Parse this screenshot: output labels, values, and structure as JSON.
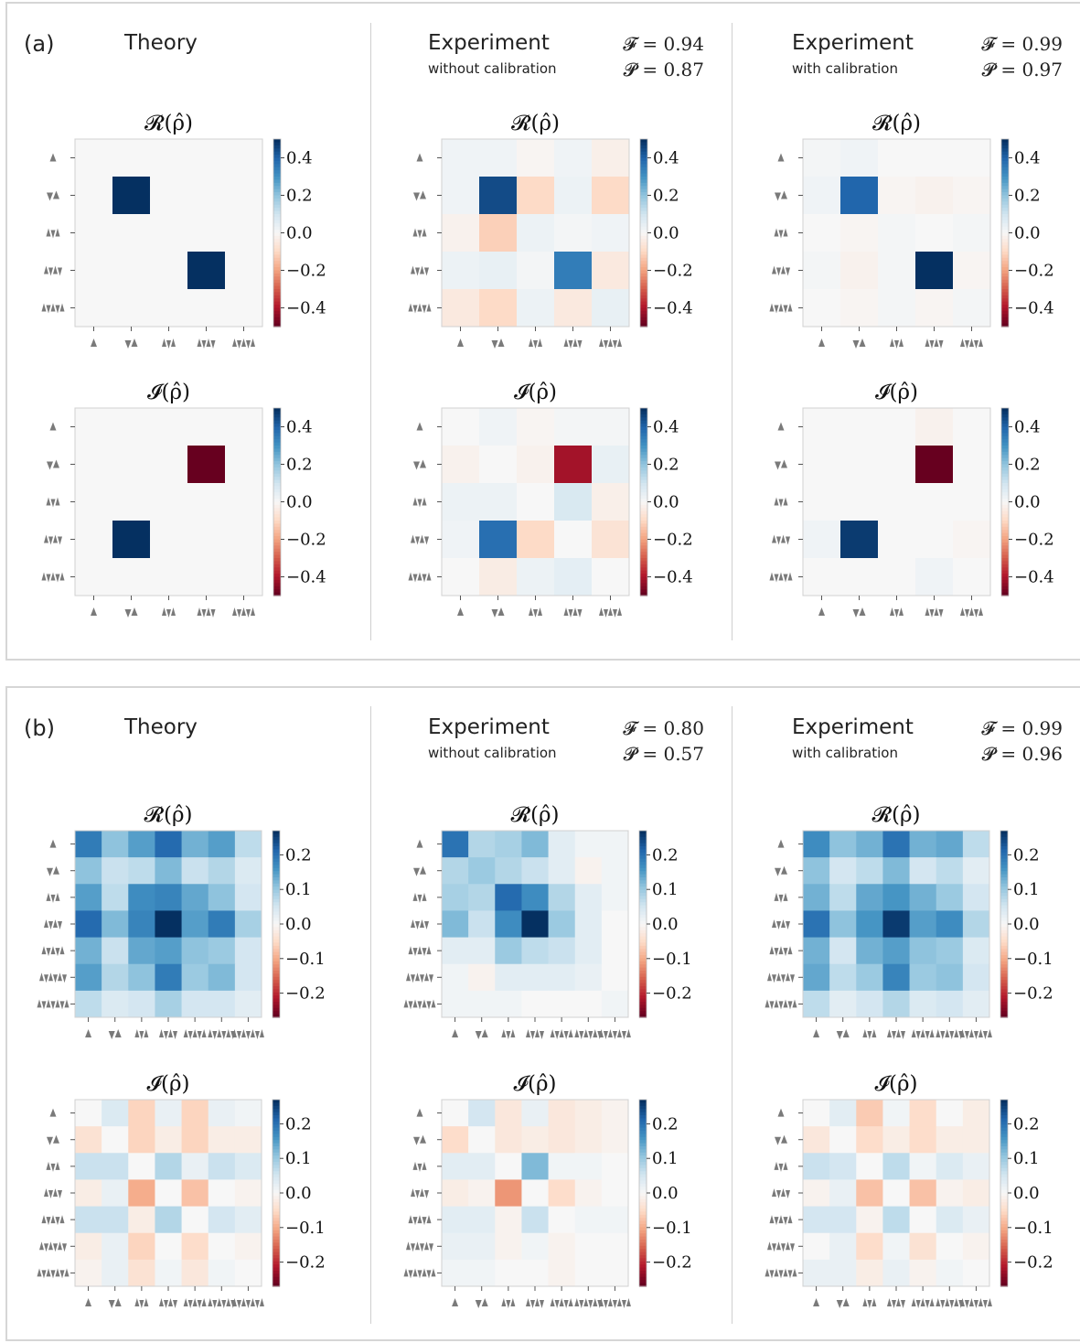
{
  "panels": [
    {
      "label": "(a)",
      "columns": [
        {
          "title": "Theory",
          "subtitle": "",
          "F": "",
          "P": ""
        },
        {
          "title": "Experiment",
          "subtitle": "without calibration",
          "F": "0.94",
          "P": "0.87"
        },
        {
          "title": "Experiment",
          "subtitle": "with calibration",
          "F": "0.99",
          "P": "0.97"
        }
      ]
    },
    {
      "label": "(b)",
      "columns": [
        {
          "title": "Theory",
          "subtitle": "",
          "F": "",
          "P": ""
        },
        {
          "title": "Experiment",
          "subtitle": "without calibration",
          "F": "0.80",
          "P": "0.57"
        },
        {
          "title": "Experiment",
          "subtitle": "with calibration",
          "F": "0.99",
          "P": "0.96"
        }
      ]
    }
  ],
  "metric_labels": {
    "F": "𝓕 =",
    "P": "𝓟 ="
  },
  "colors": {
    "positive": "#053061",
    "negative": "#67001f",
    "neutral": "#f7f7f7",
    "frame": "#d6d6d6"
  },
  "chart_data": [
    {
      "type": "heatmap",
      "panel": "a",
      "column": "Theory",
      "title": "𝓡(ρ̂)",
      "colorbar_ticks": [
        "0.4",
        "0.2",
        "0.0",
        "−0.2",
        "−0.4"
      ],
      "vmin": -0.5,
      "vmax": 0.5,
      "values": [
        [
          0,
          0,
          0,
          0,
          0
        ],
        [
          0,
          0.5,
          0,
          0,
          0
        ],
        [
          0,
          0,
          0,
          0,
          0
        ],
        [
          0,
          0,
          0,
          0.5,
          0
        ],
        [
          0,
          0,
          0,
          0,
          0
        ]
      ]
    },
    {
      "type": "heatmap",
      "panel": "a",
      "column": "Experiment without calibration",
      "title": "𝓡(ρ̂)",
      "colorbar_ticks": [
        "0.4",
        "0.2",
        "0.0",
        "−0.2",
        "−0.4"
      ],
      "vmin": -0.5,
      "vmax": 0.5,
      "values": [
        [
          0.02,
          0.02,
          -0.01,
          0.02,
          -0.03
        ],
        [
          0.02,
          0.45,
          -0.1,
          0.03,
          -0.1
        ],
        [
          -0.02,
          -0.12,
          0.03,
          0.01,
          0.02
        ],
        [
          0.03,
          0.04,
          0.01,
          0.35,
          -0.05
        ],
        [
          -0.05,
          -0.1,
          0.03,
          -0.05,
          0.04
        ]
      ]
    },
    {
      "type": "heatmap",
      "panel": "a",
      "column": "Experiment with calibration",
      "title": "𝓡(ρ̂)",
      "colorbar_ticks": [
        "0.4",
        "0.2",
        "0.0",
        "−0.2",
        "−0.4"
      ],
      "vmin": -0.5,
      "vmax": 0.5,
      "values": [
        [
          0.01,
          0.02,
          0.0,
          0.0,
          0.0
        ],
        [
          0.02,
          0.4,
          -0.01,
          -0.02,
          -0.01
        ],
        [
          0.0,
          -0.01,
          0.01,
          0.0,
          0.01
        ],
        [
          0.01,
          -0.02,
          0.01,
          0.5,
          -0.01
        ],
        [
          0.0,
          -0.01,
          0.01,
          -0.01,
          0.01
        ]
      ]
    },
    {
      "type": "heatmap",
      "panel": "a",
      "column": "Theory",
      "title": "𝓘(ρ̂)",
      "colorbar_ticks": [
        "0.4",
        "0.2",
        "0.0",
        "−0.2",
        "−0.4"
      ],
      "vmin": -0.5,
      "vmax": 0.5,
      "values": [
        [
          0,
          0,
          0,
          0,
          0
        ],
        [
          0,
          0,
          0,
          -0.5,
          0
        ],
        [
          0,
          0,
          0,
          0,
          0
        ],
        [
          0,
          0.5,
          0,
          0,
          0
        ],
        [
          0,
          0,
          0,
          0,
          0
        ]
      ]
    },
    {
      "type": "heatmap",
      "panel": "a",
      "column": "Experiment without calibration",
      "title": "𝓘(ρ̂)",
      "colorbar_ticks": [
        "0.4",
        "0.2",
        "0.0",
        "−0.2",
        "−0.4"
      ],
      "vmin": -0.5,
      "vmax": 0.5,
      "values": [
        [
          0.0,
          0.02,
          -0.01,
          0.01,
          0.01
        ],
        [
          -0.02,
          0.0,
          -0.02,
          -0.42,
          0.04
        ],
        [
          0.03,
          0.03,
          0.0,
          0.08,
          -0.03
        ],
        [
          0.02,
          0.38,
          -0.1,
          0.0,
          -0.07
        ],
        [
          0.0,
          -0.04,
          0.03,
          0.05,
          0.0
        ]
      ]
    },
    {
      "type": "heatmap",
      "panel": "a",
      "column": "Experiment with calibration",
      "title": "𝓘(ρ̂)",
      "colorbar_ticks": [
        "0.4",
        "0.2",
        "0.0",
        "−0.2",
        "−0.4"
      ],
      "vmin": -0.5,
      "vmax": 0.5,
      "values": [
        [
          0.0,
          0.0,
          0.0,
          -0.02,
          0.0
        ],
        [
          0.0,
          0.0,
          0.0,
          -0.5,
          0.0
        ],
        [
          0.0,
          0.0,
          0.0,
          0.0,
          0.0
        ],
        [
          0.02,
          0.48,
          0.0,
          0.0,
          -0.01
        ],
        [
          0.0,
          0.0,
          0.0,
          0.02,
          0.0
        ]
      ]
    },
    {
      "type": "heatmap",
      "panel": "b",
      "column": "Theory",
      "title": "𝓡(ρ̂)",
      "colorbar_ticks": [
        "0.2",
        "0.1",
        "0.0",
        "−0.1",
        "−0.2"
      ],
      "vmin": -0.27,
      "vmax": 0.27,
      "values": [
        [
          0.19,
          0.11,
          0.15,
          0.21,
          0.13,
          0.15,
          0.07
        ],
        [
          0.11,
          0.06,
          0.07,
          0.12,
          0.06,
          0.08,
          0.04
        ],
        [
          0.15,
          0.07,
          0.17,
          0.18,
          0.14,
          0.11,
          0.05
        ],
        [
          0.21,
          0.12,
          0.18,
          0.27,
          0.15,
          0.19,
          0.09
        ],
        [
          0.13,
          0.06,
          0.14,
          0.15,
          0.11,
          0.1,
          0.05
        ],
        [
          0.15,
          0.08,
          0.11,
          0.19,
          0.1,
          0.12,
          0.05
        ],
        [
          0.07,
          0.04,
          0.05,
          0.09,
          0.05,
          0.05,
          0.03
        ]
      ]
    },
    {
      "type": "heatmap",
      "panel": "b",
      "column": "Experiment without calibration",
      "title": "𝓡(ρ̂)",
      "colorbar_ticks": [
        "0.2",
        "0.1",
        "0.0",
        "−0.1",
        "−0.2"
      ],
      "vmin": -0.27,
      "vmax": 0.27,
      "values": [
        [
          0.2,
          0.08,
          0.09,
          0.12,
          0.03,
          0.01,
          0.01
        ],
        [
          0.08,
          0.1,
          0.08,
          0.06,
          0.03,
          -0.01,
          0.01
        ],
        [
          0.09,
          0.08,
          0.21,
          0.17,
          0.08,
          0.03,
          0.01
        ],
        [
          0.12,
          0.06,
          0.17,
          0.27,
          0.1,
          0.03,
          0.0
        ],
        [
          0.03,
          0.03,
          0.1,
          0.07,
          0.06,
          0.03,
          0.0
        ],
        [
          0.01,
          -0.01,
          0.03,
          0.03,
          0.03,
          0.02,
          0.0
        ],
        [
          0.01,
          0.01,
          0.01,
          0.0,
          0.0,
          0.0,
          0.01
        ]
      ]
    },
    {
      "type": "heatmap",
      "panel": "b",
      "column": "Experiment with calibration",
      "title": "𝓡(ρ̂)",
      "colorbar_ticks": [
        "0.2",
        "0.1",
        "0.0",
        "−0.1",
        "−0.2"
      ],
      "vmin": -0.27,
      "vmax": 0.27,
      "values": [
        [
          0.17,
          0.11,
          0.13,
          0.2,
          0.13,
          0.14,
          0.07
        ],
        [
          0.11,
          0.05,
          0.07,
          0.12,
          0.05,
          0.07,
          0.03
        ],
        [
          0.13,
          0.07,
          0.14,
          0.16,
          0.13,
          0.1,
          0.05
        ],
        [
          0.2,
          0.11,
          0.16,
          0.26,
          0.15,
          0.17,
          0.08
        ],
        [
          0.13,
          0.05,
          0.13,
          0.15,
          0.11,
          0.1,
          0.04
        ],
        [
          0.14,
          0.07,
          0.1,
          0.18,
          0.1,
          0.11,
          0.05
        ],
        [
          0.07,
          0.03,
          0.05,
          0.08,
          0.04,
          0.05,
          0.03
        ]
      ]
    },
    {
      "type": "heatmap",
      "panel": "b",
      "column": "Theory",
      "title": "𝓘(ρ̂)",
      "colorbar_ticks": [
        "0.2",
        "0.1",
        "0.0",
        "−0.1",
        "−0.2"
      ],
      "vmin": -0.27,
      "vmax": 0.27,
      "values": [
        [
          0.0,
          0.04,
          -0.06,
          0.02,
          -0.06,
          0.02,
          0.01
        ],
        [
          -0.04,
          0.0,
          -0.06,
          -0.02,
          -0.06,
          -0.02,
          -0.02
        ],
        [
          0.06,
          0.06,
          0.0,
          0.08,
          0.02,
          0.06,
          0.04
        ],
        [
          -0.02,
          0.02,
          -0.1,
          0.0,
          -0.08,
          0.0,
          -0.01
        ],
        [
          0.06,
          0.06,
          -0.02,
          0.08,
          0.0,
          0.05,
          0.03
        ],
        [
          -0.02,
          0.02,
          -0.06,
          0.0,
          -0.05,
          0.0,
          -0.01
        ],
        [
          -0.01,
          0.02,
          -0.04,
          0.01,
          -0.03,
          0.01,
          0.0
        ]
      ]
    },
    {
      "type": "heatmap",
      "panel": "b",
      "column": "Experiment without calibration",
      "title": "𝓘(ρ̂)",
      "colorbar_ticks": [
        "0.2",
        "0.1",
        "0.0",
        "−0.1",
        "−0.2"
      ],
      "vmin": -0.27,
      "vmax": 0.27,
      "values": [
        [
          0.0,
          0.05,
          -0.03,
          0.02,
          -0.03,
          -0.02,
          -0.01
        ],
        [
          -0.05,
          0.0,
          -0.03,
          -0.02,
          -0.03,
          -0.02,
          -0.01
        ],
        [
          0.03,
          0.03,
          0.0,
          0.12,
          0.01,
          0.01,
          0.0
        ],
        [
          -0.02,
          -0.01,
          -0.12,
          0.0,
          -0.05,
          -0.01,
          0.0
        ],
        [
          0.03,
          0.03,
          -0.01,
          0.06,
          0.0,
          0.01,
          0.01
        ],
        [
          0.02,
          0.02,
          -0.01,
          0.01,
          -0.01,
          0.0,
          0.0
        ],
        [
          0.01,
          0.01,
          0.0,
          0.0,
          -0.01,
          0.0,
          0.0
        ]
      ]
    },
    {
      "type": "heatmap",
      "panel": "b",
      "column": "Experiment with calibration",
      "title": "𝓘(ρ̂)",
      "colorbar_ticks": [
        "0.2",
        "0.1",
        "0.0",
        "−0.1",
        "−0.2"
      ],
      "vmin": -0.27,
      "vmax": 0.27,
      "values": [
        [
          0.0,
          0.03,
          -0.07,
          0.01,
          -0.05,
          0.0,
          -0.02
        ],
        [
          -0.03,
          0.0,
          -0.05,
          -0.02,
          -0.05,
          -0.02,
          -0.02
        ],
        [
          0.06,
          0.05,
          0.0,
          0.07,
          0.01,
          0.04,
          0.02
        ],
        [
          -0.01,
          0.02,
          -0.08,
          0.0,
          -0.08,
          -0.01,
          -0.02
        ],
        [
          0.05,
          0.05,
          -0.01,
          0.07,
          0.0,
          0.04,
          0.02
        ],
        [
          0.0,
          0.02,
          -0.05,
          0.01,
          -0.04,
          0.0,
          -0.01
        ],
        [
          0.02,
          0.02,
          -0.02,
          0.02,
          -0.01,
          0.01,
          0.0
        ]
      ]
    }
  ]
}
